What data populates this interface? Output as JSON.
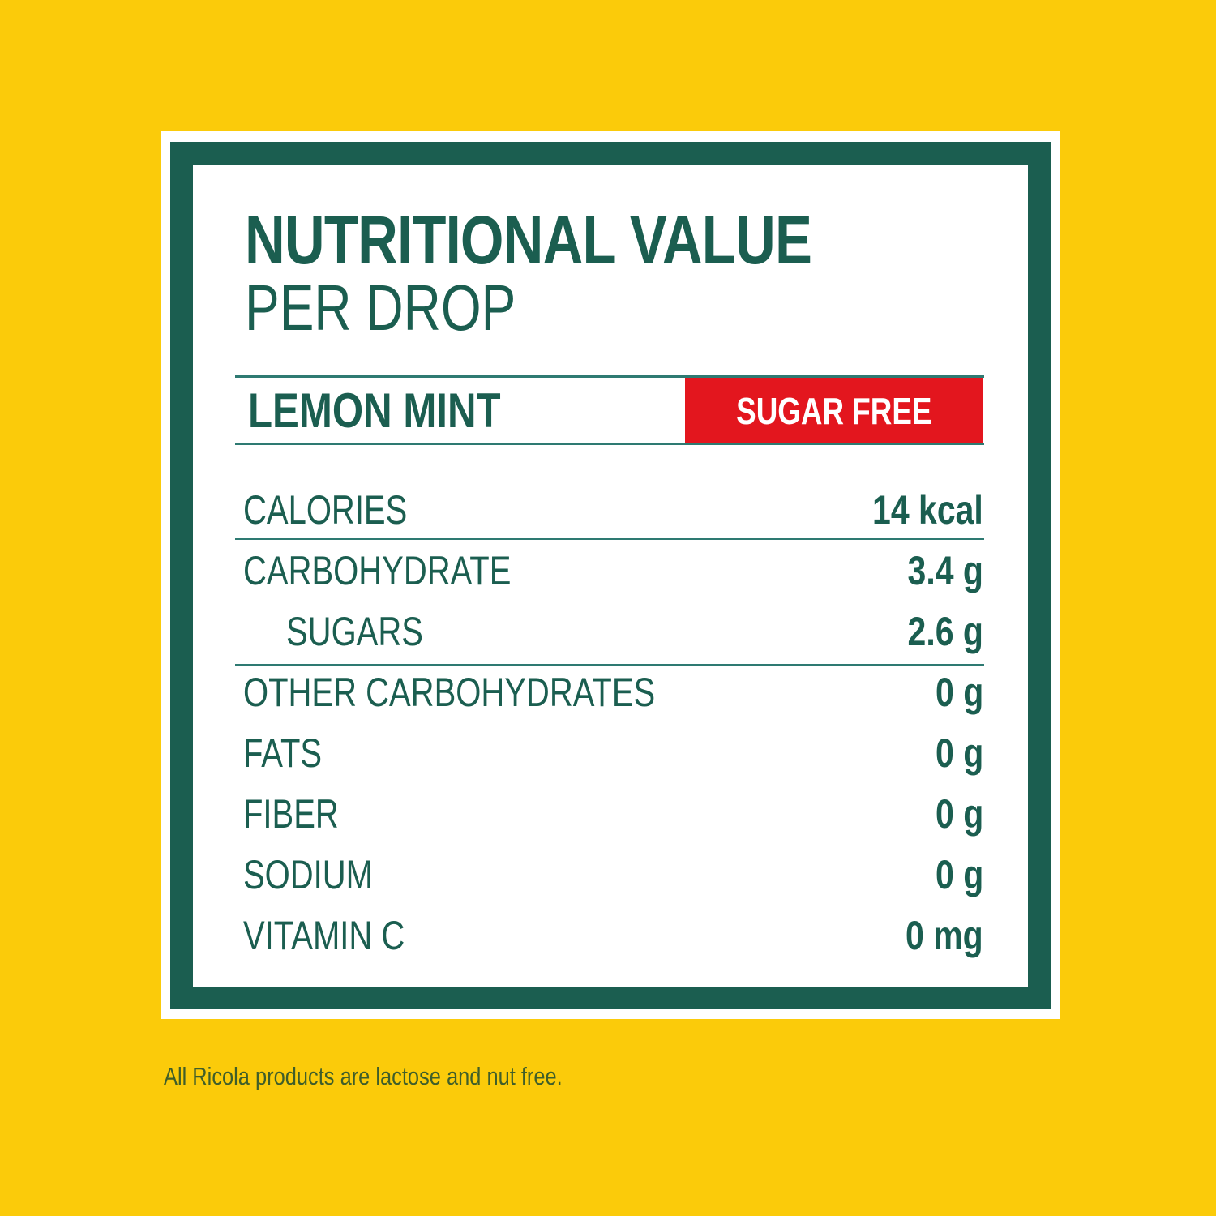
{
  "colors": {
    "background": "#FBCB0A",
    "primary_green": "#1B5E50",
    "badge_red": "#E3161E"
  },
  "header": {
    "title": "NUTRITIONAL VALUE",
    "subtitle": "PER DROP"
  },
  "product": {
    "flavor": "LEMON MINT",
    "badge": "SUGAR FREE"
  },
  "rows": [
    {
      "label": "CALORIES",
      "value": "14 kcal"
    },
    {
      "label": "CARBOHYDRATE",
      "value": "3.4 g"
    },
    {
      "label": "SUGARS",
      "value": "2.6 g"
    },
    {
      "label": "OTHER CARBOHYDRATES",
      "value": "0 g"
    },
    {
      "label": "FATS",
      "value": "0 g"
    },
    {
      "label": "FIBER",
      "value": "0 g"
    },
    {
      "label": "SODIUM",
      "value": "0 g"
    },
    {
      "label": "VITAMIN C",
      "value": "0 mg"
    }
  ],
  "footnote": "All Ricola products are lactose and nut free."
}
